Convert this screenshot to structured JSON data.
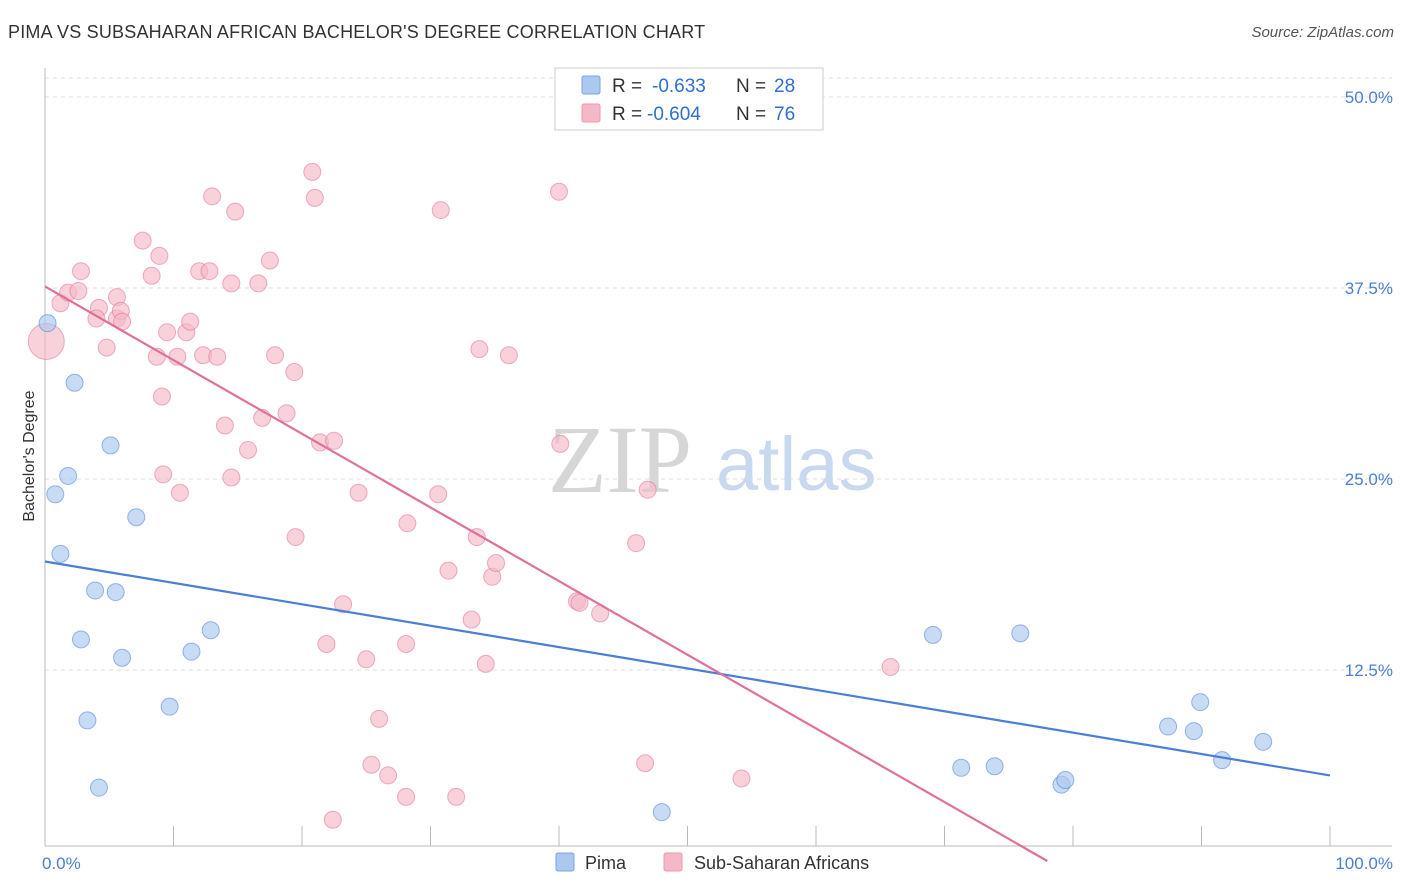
{
  "title": "PIMA VS SUBSAHARAN AFRICAN BACHELOR'S DEGREE CORRELATION CHART",
  "source": "Source: ZipAtlas.com",
  "watermark": {
    "zip": "ZIP",
    "atlas": "atlas"
  },
  "legend_top": {
    "rows": [
      {
        "r_label": "R =",
        "r_value": "-0.633",
        "n_label": "N =",
        "n_value": "28",
        "color": "#aac8f0"
      },
      {
        "r_label": "R =",
        "r_value": "-0.604",
        "n_label": "N =",
        "n_value": "76",
        "color": "#f5b8c8"
      }
    ]
  },
  "legend_bottom": {
    "items": [
      {
        "label": "Pima",
        "color": "#aac8f0"
      },
      {
        "label": "Sub-Saharan Africans",
        "color": "#f5b8c8"
      }
    ]
  },
  "chart_data": {
    "type": "scatter",
    "title": "PIMA VS SUBSAHARAN AFRICAN BACHELOR'S DEGREE CORRELATION CHART",
    "xlabel": "",
    "ylabel": "Bachelor's Degree",
    "xlim": [
      0,
      100
    ],
    "ylim": [
      0,
      50
    ],
    "x_tick_labels": [
      "0.0%",
      "100.0%"
    ],
    "y_ticks": [
      12.5,
      25.0,
      37.5,
      50.0
    ],
    "y_tick_labels": [
      "12.5%",
      "25.0%",
      "37.5%",
      "50.0%"
    ],
    "grid": true,
    "series": [
      {
        "name": "Pima",
        "color": "#4a7fd4",
        "fill": "#aac8f0",
        "trend": {
          "x": [
            0,
            100
          ],
          "y": [
            19.6,
            5.6
          ]
        },
        "points": [
          [
            0.2,
            35.2
          ],
          [
            2.3,
            31.3
          ],
          [
            0.8,
            24.0
          ],
          [
            1.8,
            25.2
          ],
          [
            5.1,
            27.2
          ],
          [
            7.1,
            22.5
          ],
          [
            1.2,
            20.1
          ],
          [
            3.9,
            17.7
          ],
          [
            5.5,
            17.6
          ],
          [
            2.8,
            14.5
          ],
          [
            6.0,
            13.3
          ],
          [
            12.9,
            15.1
          ],
          [
            11.4,
            13.7
          ],
          [
            3.3,
            9.2
          ],
          [
            9.7,
            10.1
          ],
          [
            4.2,
            4.8
          ],
          [
            48.0,
            3.2
          ],
          [
            69.1,
            14.8
          ],
          [
            75.9,
            14.9
          ],
          [
            89.9,
            10.4
          ],
          [
            87.4,
            8.8
          ],
          [
            89.4,
            8.5
          ],
          [
            91.6,
            6.6
          ],
          [
            94.8,
            7.8
          ],
          [
            71.3,
            6.1
          ],
          [
            73.9,
            6.2
          ],
          [
            79.1,
            5.0
          ],
          [
            79.4,
            5.3
          ]
        ]
      },
      {
        "name": "Sub-Saharan Africans",
        "color": "#e0709a",
        "fill": "#f5b8c8",
        "trend": {
          "x": [
            0,
            78
          ],
          "y": [
            37.6,
            0.0
          ]
        },
        "points": [
          [
            0.1,
            34.0
          ],
          [
            1.2,
            36.5
          ],
          [
            1.8,
            37.2
          ],
          [
            2.6,
            37.3
          ],
          [
            2.8,
            38.6
          ],
          [
            4.2,
            36.2
          ],
          [
            4.0,
            35.5
          ],
          [
            5.6,
            36.9
          ],
          [
            5.6,
            35.5
          ],
          [
            5.9,
            36.0
          ],
          [
            6.0,
            35.3
          ],
          [
            4.8,
            33.6
          ],
          [
            7.6,
            40.6
          ],
          [
            8.3,
            38.3
          ],
          [
            8.7,
            33.0
          ],
          [
            9.1,
            30.4
          ],
          [
            8.9,
            39.6
          ],
          [
            9.2,
            25.3
          ],
          [
            9.5,
            34.6
          ],
          [
            10.3,
            33.0
          ],
          [
            10.5,
            24.1
          ],
          [
            11.0,
            34.6
          ],
          [
            11.3,
            35.3
          ],
          [
            12.0,
            38.6
          ],
          [
            12.3,
            33.1
          ],
          [
            12.8,
            38.6
          ],
          [
            13.0,
            43.5
          ],
          [
            13.4,
            33.0
          ],
          [
            14.0,
            28.5
          ],
          [
            14.5,
            37.8
          ],
          [
            14.5,
            25.1
          ],
          [
            14.8,
            42.5
          ],
          [
            15.8,
            26.9
          ],
          [
            16.6,
            37.8
          ],
          [
            16.9,
            29.0
          ],
          [
            17.5,
            39.3
          ],
          [
            17.9,
            33.1
          ],
          [
            18.8,
            29.3
          ],
          [
            19.4,
            32.0
          ],
          [
            19.5,
            21.2
          ],
          [
            20.8,
            45.1
          ],
          [
            21.0,
            43.4
          ],
          [
            21.4,
            27.4
          ],
          [
            22.5,
            27.5
          ],
          [
            23.2,
            16.8
          ],
          [
            21.9,
            14.2
          ],
          [
            24.4,
            24.1
          ],
          [
            25.0,
            13.2
          ],
          [
            25.4,
            6.3
          ],
          [
            26.0,
            9.3
          ],
          [
            26.7,
            5.6
          ],
          [
            22.4,
            2.7
          ],
          [
            28.1,
            4.2
          ],
          [
            28.1,
            14.2
          ],
          [
            28.2,
            22.1
          ],
          [
            30.6,
            24.0
          ],
          [
            30.8,
            42.6
          ],
          [
            31.4,
            19.0
          ],
          [
            32.0,
            4.2
          ],
          [
            33.2,
            15.8
          ],
          [
            33.6,
            21.2
          ],
          [
            33.8,
            33.5
          ],
          [
            34.3,
            12.9
          ],
          [
            34.8,
            18.6
          ],
          [
            35.1,
            19.5
          ],
          [
            36.1,
            33.1
          ],
          [
            40.1,
            27.3
          ],
          [
            40.0,
            43.8
          ],
          [
            41.4,
            17.0
          ],
          [
            41.6,
            16.9
          ],
          [
            43.2,
            16.2
          ],
          [
            46.0,
            20.8
          ],
          [
            46.9,
            24.3
          ],
          [
            46.7,
            6.4
          ],
          [
            54.2,
            5.4
          ],
          [
            65.8,
            12.7
          ]
        ]
      }
    ]
  }
}
